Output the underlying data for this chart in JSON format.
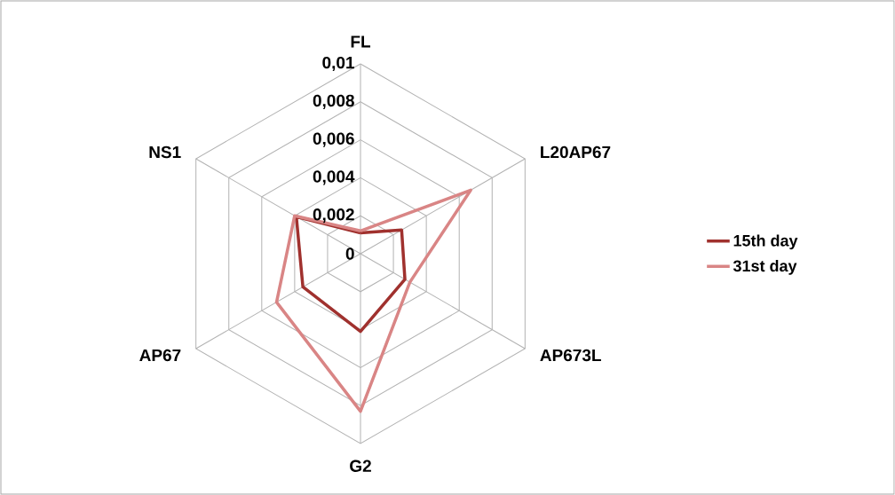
{
  "chart_data": {
    "type": "radar",
    "categories": [
      "FL",
      "L20AP67",
      "AP673L",
      "G2",
      "AP67",
      "NS1"
    ],
    "series": [
      {
        "name": "15th day",
        "color": "#a0312e",
        "values": [
          0.0011,
          0.0025,
          0.0027,
          0.0041,
          0.0035,
          0.0039
        ]
      },
      {
        "name": "31st day",
        "color": "#d98585",
        "values": [
          0.0012,
          0.0067,
          0.003,
          0.0083,
          0.0051,
          0.004
        ]
      }
    ],
    "ylim": [
      0,
      0.01
    ],
    "yticks": [
      {
        "value": 0,
        "label": "0"
      },
      {
        "value": 0.002,
        "label": "0,002"
      },
      {
        "value": 0.004,
        "label": "0,004"
      },
      {
        "value": 0.006,
        "label": "0,006"
      },
      {
        "value": 0.008,
        "label": "0,008"
      },
      {
        "value": 0.01,
        "label": "0,01"
      }
    ],
    "grid": true,
    "legend": "right",
    "marker": "none",
    "line_style": "solid"
  }
}
